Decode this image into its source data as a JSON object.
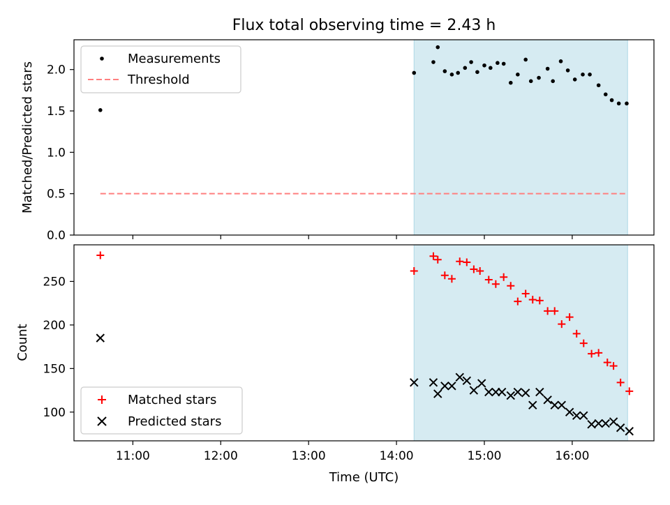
{
  "figure": {
    "title": "Flux total observing time = 2.43 h"
  },
  "colors": {
    "shade": "#add8e6",
    "threshold": "#ff7f7f",
    "matched": "#ff0000",
    "predicted": "#000000",
    "measurement": "#000000"
  },
  "chart_data": [
    {
      "type": "scatter",
      "title": "Flux total observing time = 2.43 h",
      "xlabel": "",
      "ylabel": "Matched/Predicted stars",
      "x_unit": "hours UTC",
      "xlim": [
        10.33,
        16.93
      ],
      "ylim": [
        0.0,
        2.36
      ],
      "yticks": [
        {
          "value": 0.0,
          "label": "0.0"
        },
        {
          "value": 0.5,
          "label": "0.5"
        },
        {
          "value": 1.0,
          "label": "1.0"
        },
        {
          "value": 1.5,
          "label": "1.5"
        },
        {
          "value": 2.0,
          "label": "2.0"
        }
      ],
      "shaded_span": [
        14.2,
        16.63
      ],
      "legend_position": "upper-left",
      "series": [
        {
          "name": "Measurements",
          "kind": "scatter",
          "x": [
            10.63,
            14.2,
            14.42,
            14.47,
            14.55,
            14.63,
            14.7,
            14.78,
            14.85,
            14.92,
            15.0,
            15.07,
            15.15,
            15.22,
            15.3,
            15.38,
            15.47,
            15.53,
            15.62,
            15.72,
            15.78,
            15.87,
            15.95,
            16.03,
            16.12,
            16.2,
            16.3,
            16.38,
            16.45,
            16.53,
            16.62
          ],
          "y": [
            1.51,
            1.96,
            2.09,
            2.27,
            1.98,
            1.94,
            1.96,
            2.02,
            2.09,
            1.97,
            2.05,
            2.02,
            2.08,
            2.07,
            1.84,
            1.94,
            2.12,
            1.86,
            1.9,
            2.01,
            1.86,
            2.1,
            1.99,
            1.88,
            1.94,
            1.94,
            1.81,
            1.7,
            1.63,
            1.59,
            1.59
          ]
        },
        {
          "name": "Threshold",
          "kind": "hline",
          "x": [
            10.63,
            16.63
          ],
          "y": [
            0.5,
            0.5
          ]
        }
      ]
    },
    {
      "type": "scatter",
      "title": "",
      "xlabel": "Time (UTC)",
      "ylabel": "Count",
      "x_unit": "hours UTC",
      "xlim": [
        10.33,
        16.93
      ],
      "ylim": [
        67,
        292
      ],
      "xticks": [
        {
          "value": 11,
          "label": "11:00"
        },
        {
          "value": 12,
          "label": "12:00"
        },
        {
          "value": 13,
          "label": "13:00"
        },
        {
          "value": 14,
          "label": "14:00"
        },
        {
          "value": 15,
          "label": "15:00"
        },
        {
          "value": 16,
          "label": "16:00"
        }
      ],
      "yticks": [
        {
          "value": 100,
          "label": "100"
        },
        {
          "value": 150,
          "label": "150"
        },
        {
          "value": 200,
          "label": "200"
        },
        {
          "value": 250,
          "label": "250"
        }
      ],
      "shaded_span": [
        14.2,
        16.63
      ],
      "legend_position": "lower-left",
      "series": [
        {
          "name": "Matched stars",
          "kind": "plus",
          "x": [
            10.63,
            14.2,
            14.42,
            14.47,
            14.55,
            14.63,
            14.72,
            14.8,
            14.88,
            14.95,
            15.05,
            15.13,
            15.22,
            15.3,
            15.38,
            15.47,
            15.55,
            15.63,
            15.72,
            15.8,
            15.88,
            15.97,
            16.05,
            16.13,
            16.22,
            16.3,
            16.4,
            16.47,
            16.55,
            16.65
          ],
          "y": [
            280,
            262,
            279,
            275,
            257,
            253,
            273,
            272,
            264,
            262,
            252,
            247,
            255,
            245,
            227,
            236,
            229,
            228,
            216,
            216,
            201,
            209,
            190,
            179,
            167,
            168,
            157,
            153,
            134,
            124
          ]
        },
        {
          "name": "Predicted stars",
          "kind": "x",
          "x": [
            10.63,
            14.2,
            14.42,
            14.47,
            14.55,
            14.63,
            14.72,
            14.8,
            14.88,
            14.97,
            15.05,
            15.13,
            15.2,
            15.3,
            15.38,
            15.47,
            15.55,
            15.63,
            15.72,
            15.8,
            15.88,
            15.97,
            16.05,
            16.13,
            16.22,
            16.3,
            16.38,
            16.47,
            16.55,
            16.65
          ],
          "y": [
            185,
            134,
            134,
            121,
            130,
            130,
            140,
            136,
            125,
            133,
            123,
            123,
            123,
            119,
            123,
            122,
            108,
            123,
            114,
            108,
            108,
            100,
            96,
            96,
            86,
            87,
            87,
            89,
            82,
            78
          ]
        }
      ]
    }
  ]
}
